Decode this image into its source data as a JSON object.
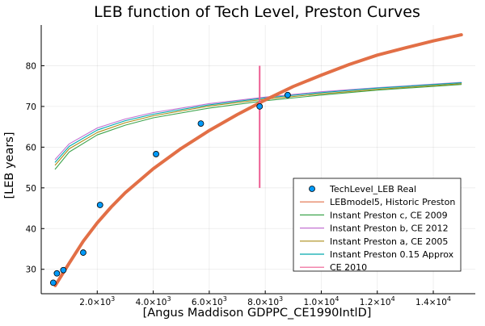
{
  "chart_data": {
    "type": "line",
    "title": "LEB function of Tech Level, Preston Curves",
    "xlabel": "[Angus Maddison GDPPC_CE1990IntlD]",
    "ylabel": "[LEB years]",
    "xlim": [
      0,
      15500
    ],
    "ylim": [
      24,
      90
    ],
    "x_ticks": [
      {
        "value": 2000,
        "mantissa": "2.0",
        "exp": "3"
      },
      {
        "value": 4000,
        "mantissa": "4.0",
        "exp": "3"
      },
      {
        "value": 6000,
        "mantissa": "6.0",
        "exp": "3"
      },
      {
        "value": 8000,
        "mantissa": "8.0",
        "exp": "3"
      },
      {
        "value": 10000,
        "mantissa": "1.0",
        "exp": "4"
      },
      {
        "value": 12000,
        "mantissa": "1.2",
        "exp": "4"
      },
      {
        "value": 14000,
        "mantissa": "1.4",
        "exp": "4"
      }
    ],
    "y_ticks": [
      30,
      40,
      50,
      60,
      70,
      80
    ],
    "grid": true,
    "legend_position": "bottom-right",
    "scatter": {
      "name": "TechLevel_LEB Real",
      "color": "#009AF9",
      "points": [
        {
          "x": 430,
          "y": 26.7
        },
        {
          "x": 560,
          "y": 29.0
        },
        {
          "x": 790,
          "y": 29.8
        },
        {
          "x": 1500,
          "y": 34.1
        },
        {
          "x": 2100,
          "y": 45.8
        },
        {
          "x": 4100,
          "y": 58.3
        },
        {
          "x": 5700,
          "y": 65.8
        },
        {
          "x": 7800,
          "y": 70.0
        },
        {
          "x": 8800,
          "y": 72.8
        }
      ]
    },
    "series": [
      {
        "name": "LEBmodel5, Historic Preston",
        "color": "#E26F46",
        "x": [
          500,
          1000,
          1500,
          2000,
          2500,
          3000,
          4000,
          5000,
          6000,
          7000,
          8000,
          9000,
          10000,
          11000,
          12000,
          13000,
          14000,
          15000
        ],
        "values": [
          26.0,
          31.5,
          36.9,
          41.4,
          45.3,
          48.8,
          54.7,
          59.7,
          64.1,
          68.0,
          71.6,
          74.9,
          77.7,
          80.3,
          82.6,
          84.4,
          86.1,
          87.6
        ]
      },
      {
        "name": "Instant Preston c, CE 2009",
        "color": "#3DA44D",
        "x": [
          500,
          1000,
          2000,
          3000,
          4000,
          6000,
          8000,
          10000,
          12000,
          15000
        ],
        "values": [
          54.6,
          58.8,
          63.0,
          65.4,
          67.2,
          69.6,
          71.4,
          72.8,
          74.0,
          75.4
        ]
      },
      {
        "name": "Instant Preston b, CE 2012",
        "color": "#C271D2",
        "x": [
          500,
          1000,
          2000,
          3000,
          4000,
          6000,
          8000,
          10000,
          12000,
          15000
        ],
        "values": [
          57.0,
          60.8,
          64.7,
          66.9,
          68.5,
          70.7,
          72.3,
          73.6,
          74.6,
          75.9
        ]
      },
      {
        "name": "Instant Preston a, CE 2005",
        "color": "#AC8D18",
        "x": [
          500,
          1000,
          2000,
          3000,
          4000,
          6000,
          8000,
          10000,
          12000,
          15000
        ],
        "values": [
          55.6,
          59.6,
          63.6,
          66.0,
          67.7,
          70.1,
          71.8,
          73.1,
          74.2,
          75.6
        ]
      },
      {
        "name": "Instant Preston 0.15 Approx",
        "color": "#00A9AD",
        "x": [
          500,
          1000,
          2000,
          3000,
          4000,
          6000,
          8000,
          10000,
          12000,
          15000
        ],
        "values": [
          56.3,
          60.2,
          64.2,
          66.5,
          68.1,
          70.4,
          72.1,
          73.4,
          74.5,
          75.8
        ]
      }
    ],
    "vline": {
      "name": "CE 2010",
      "color": "#ED5D92",
      "x": 7800,
      "y_range": [
        50,
        80
      ]
    }
  }
}
